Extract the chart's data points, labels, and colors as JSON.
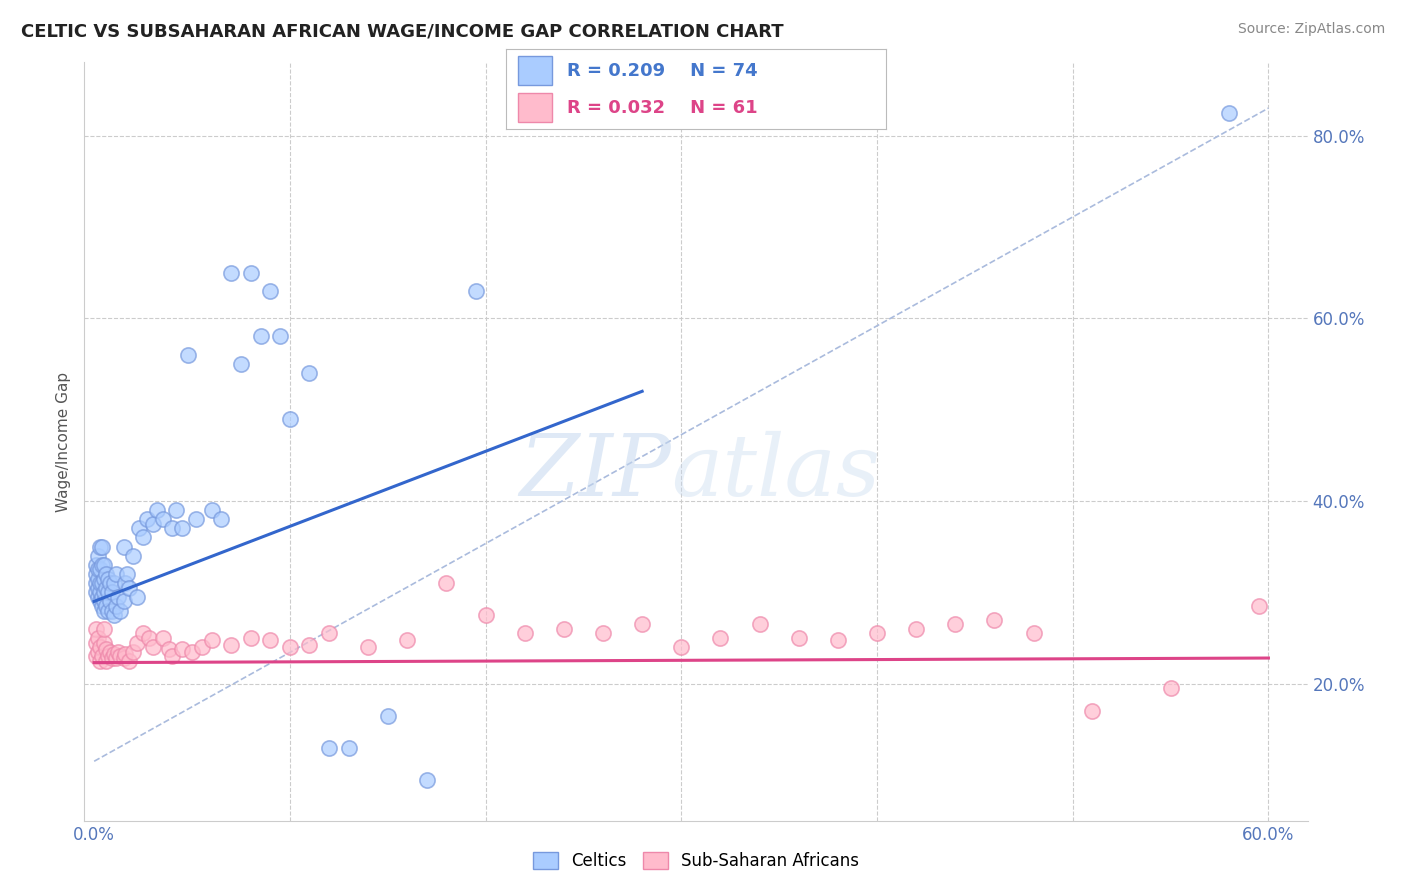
{
  "title": "CELTIC VS SUBSAHARAN AFRICAN WAGE/INCOME GAP CORRELATION CHART",
  "source": "Source: ZipAtlas.com",
  "ylabel": "Wage/Income Gap",
  "xlim": [
    -0.005,
    0.62
  ],
  "ylim": [
    0.05,
    0.88
  ],
  "xticks": [
    0.0,
    0.1,
    0.2,
    0.3,
    0.4,
    0.5,
    0.6
  ],
  "xticklabels": [
    "0.0%",
    "",
    "",
    "",
    "",
    "",
    "60.0%"
  ],
  "ytick_positions": [
    0.2,
    0.4,
    0.6,
    0.8
  ],
  "ytick_labels": [
    "20.0%",
    "40.0%",
    "60.0%",
    "80.0%"
  ],
  "grid_color": "#cccccc",
  "background_color": "#ffffff",
  "celtic_color": "#aaccff",
  "celtic_edge": "#7799dd",
  "subsaharan_color": "#ffbbcc",
  "subsaharan_edge": "#ee88aa",
  "legend_R1": "R = 0.209",
  "legend_N1": "N = 74",
  "legend_R2": "R = 0.032",
  "legend_N2": "N = 61",
  "legend_label1": "Celtics",
  "legend_label2": "Sub-Saharan Africans",
  "blue_trend_x": [
    0.0,
    0.28
  ],
  "blue_trend_y": [
    0.29,
    0.52
  ],
  "pink_trend_x": [
    0.0,
    0.6
  ],
  "pink_trend_y": [
    0.223,
    0.228
  ],
  "ref_line_x": [
    0.0,
    0.6
  ],
  "ref_line_y": [
    0.115,
    0.83
  ],
  "celtic_x": [
    0.001,
    0.001,
    0.001,
    0.001,
    0.002,
    0.002,
    0.002,
    0.002,
    0.002,
    0.003,
    0.003,
    0.003,
    0.003,
    0.003,
    0.004,
    0.004,
    0.004,
    0.004,
    0.004,
    0.005,
    0.005,
    0.005,
    0.005,
    0.005,
    0.006,
    0.006,
    0.006,
    0.007,
    0.007,
    0.007,
    0.008,
    0.008,
    0.009,
    0.009,
    0.01,
    0.01,
    0.011,
    0.011,
    0.012,
    0.013,
    0.015,
    0.015,
    0.016,
    0.017,
    0.018,
    0.02,
    0.022,
    0.023,
    0.025,
    0.027,
    0.03,
    0.032,
    0.035,
    0.04,
    0.042,
    0.045,
    0.048,
    0.052,
    0.06,
    0.065,
    0.07,
    0.075,
    0.08,
    0.085,
    0.09,
    0.095,
    0.1,
    0.11,
    0.12,
    0.13,
    0.15,
    0.17,
    0.195,
    0.58
  ],
  "celtic_y": [
    0.3,
    0.31,
    0.32,
    0.33,
    0.295,
    0.305,
    0.315,
    0.325,
    0.34,
    0.29,
    0.3,
    0.31,
    0.325,
    0.35,
    0.285,
    0.295,
    0.31,
    0.33,
    0.35,
    0.28,
    0.29,
    0.3,
    0.315,
    0.33,
    0.285,
    0.305,
    0.32,
    0.28,
    0.3,
    0.315,
    0.29,
    0.31,
    0.28,
    0.3,
    0.275,
    0.31,
    0.285,
    0.32,
    0.295,
    0.28,
    0.29,
    0.35,
    0.31,
    0.32,
    0.305,
    0.34,
    0.295,
    0.37,
    0.36,
    0.38,
    0.375,
    0.39,
    0.38,
    0.37,
    0.39,
    0.37,
    0.56,
    0.38,
    0.39,
    0.38,
    0.65,
    0.55,
    0.65,
    0.58,
    0.63,
    0.58,
    0.49,
    0.54,
    0.13,
    0.13,
    0.165,
    0.095,
    0.63,
    0.825
  ],
  "subsaharan_x": [
    0.001,
    0.001,
    0.001,
    0.002,
    0.002,
    0.003,
    0.003,
    0.004,
    0.005,
    0.005,
    0.006,
    0.006,
    0.007,
    0.008,
    0.009,
    0.01,
    0.011,
    0.012,
    0.013,
    0.015,
    0.016,
    0.018,
    0.02,
    0.022,
    0.025,
    0.028,
    0.03,
    0.035,
    0.038,
    0.04,
    0.045,
    0.05,
    0.055,
    0.06,
    0.07,
    0.08,
    0.09,
    0.1,
    0.11,
    0.12,
    0.14,
    0.16,
    0.18,
    0.2,
    0.22,
    0.24,
    0.26,
    0.28,
    0.3,
    0.32,
    0.34,
    0.36,
    0.38,
    0.4,
    0.42,
    0.44,
    0.46,
    0.48,
    0.51,
    0.55,
    0.595
  ],
  "subsaharan_y": [
    0.23,
    0.245,
    0.26,
    0.235,
    0.25,
    0.225,
    0.24,
    0.23,
    0.245,
    0.26,
    0.225,
    0.238,
    0.23,
    0.235,
    0.228,
    0.232,
    0.228,
    0.235,
    0.23,
    0.228,
    0.232,
    0.225,
    0.235,
    0.245,
    0.255,
    0.25,
    0.24,
    0.25,
    0.238,
    0.23,
    0.238,
    0.235,
    0.24,
    0.248,
    0.242,
    0.25,
    0.248,
    0.24,
    0.242,
    0.255,
    0.24,
    0.248,
    0.31,
    0.275,
    0.255,
    0.26,
    0.255,
    0.265,
    0.24,
    0.25,
    0.265,
    0.25,
    0.248,
    0.255,
    0.26,
    0.265,
    0.27,
    0.255,
    0.17,
    0.195,
    0.285
  ]
}
